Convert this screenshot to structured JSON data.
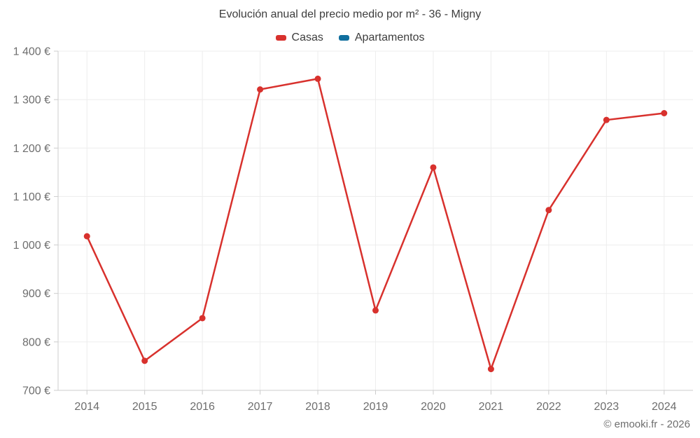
{
  "header": {
    "title": "Evolución anual del precio medio por m² - 36 - Migny"
  },
  "legend": {
    "items": [
      {
        "label": "Casas",
        "color": "#d8312d"
      },
      {
        "label": "Apartamentos",
        "color": "#106f9e"
      }
    ]
  },
  "footer": {
    "credit": "© emooki.fr - 2026"
  },
  "colors": {
    "casas_line": "#d8312d",
    "apartamentos_line": "#106f9e",
    "grid": "#ededed",
    "axis": "#cccccc",
    "tick_label": "#6e6e6e",
    "title_text": "#3d3d3d"
  },
  "chart_data": {
    "type": "line",
    "title": "Evolución anual del precio medio por m² - 36 - Migny",
    "xlabel": "",
    "ylabel": "",
    "categories": [
      "2014",
      "2015",
      "2016",
      "2017",
      "2018",
      "2019",
      "2020",
      "2021",
      "2022",
      "2023",
      "2024"
    ],
    "series": [
      {
        "name": "Casas",
        "color": "#d8312d",
        "values": [
          1018,
          761,
          849,
          1321,
          1343,
          865,
          1160,
          744,
          1072,
          1258,
          1272
        ]
      },
      {
        "name": "Apartamentos",
        "color": "#106f9e",
        "values": []
      }
    ],
    "ylim": [
      700,
      1400
    ],
    "ytick_step": 100,
    "ytick_suffix": " €",
    "grid": true,
    "legend_position": "top",
    "marker": "circle",
    "annotations": []
  }
}
